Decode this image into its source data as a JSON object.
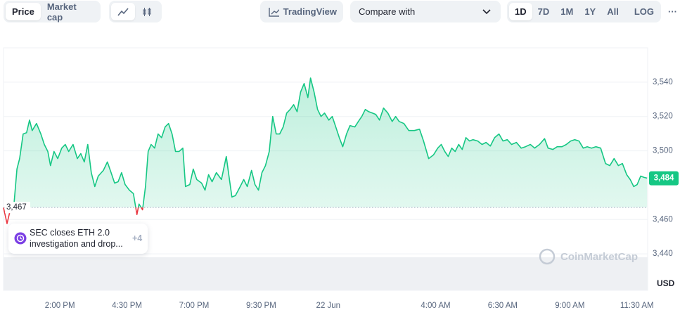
{
  "toolbar": {
    "type_tabs": [
      "Price",
      "Market cap"
    ],
    "tradingview": "TradingView",
    "compare": "Compare with",
    "ranges": [
      "1D",
      "7D",
      "1M",
      "1Y",
      "All"
    ],
    "log": "LOG",
    "more": "···"
  },
  "chart_data": {
    "type": "line",
    "x": [
      11.9,
      12.03,
      12.14,
      12.29,
      12.4,
      12.5,
      12.63,
      12.76,
      12.87,
      12.97,
      13.13,
      13.29,
      13.42,
      13.55,
      13.65,
      13.78,
      13.92,
      14.07,
      14.2,
      14.33,
      14.49,
      14.65,
      14.78,
      14.91,
      15.04,
      15.17,
      15.3,
      15.43,
      15.62,
      15.77,
      15.91,
      16.04,
      16.17,
      16.3,
      16.43,
      16.59,
      16.74,
      16.87,
      16.95,
      17.08,
      17.19,
      17.29,
      17.4,
      17.53,
      17.66,
      17.79,
      17.92,
      18.05,
      18.18,
      18.31,
      18.44,
      18.58,
      18.68,
      18.84,
      18.97,
      19.1,
      19.28,
      19.41,
      19.54,
      19.67,
      19.83,
      20.02,
      20.2,
      20.3,
      20.41,
      20.54,
      20.72,
      20.85,
      20.98,
      21.14,
      21.27,
      21.4,
      21.53,
      21.66,
      21.8,
      21.93,
      22.06,
      22.19,
      22.32,
      22.45,
      22.58,
      22.71,
      22.84,
      22.97,
      23.1,
      23.24,
      23.34,
      23.47,
      23.6,
      23.73,
      23.86,
      24.02,
      24.15,
      24.28,
      24.41,
      24.54,
      24.68,
      24.81,
      24.99,
      25.12,
      25.25,
      25.38,
      25.51,
      25.64,
      25.77,
      25.91,
      26.06,
      26.22,
      26.38,
      26.51,
      26.64,
      26.82,
      27.0,
      27.21,
      27.4,
      27.55,
      27.74,
      27.92,
      28.08,
      28.21,
      28.34,
      28.47,
      28.6,
      28.73,
      28.86,
      28.99,
      29.13,
      29.26,
      29.39,
      29.57,
      29.73,
      29.88,
      30.04,
      30.2,
      30.36,
      30.51,
      30.67,
      30.83,
      31.01,
      31.19,
      31.35,
      31.53,
      31.69,
      31.87,
      32.06,
      32.19,
      32.37,
      32.53,
      32.71,
      32.87,
      33.03,
      33.18,
      33.34,
      33.5,
      33.65,
      33.81,
      33.97,
      34.15,
      34.33,
      34.49,
      34.65,
      34.81,
      34.96,
      35.12,
      35.25,
      35.38,
      35.51,
      35.64,
      35.77,
      35.88
    ],
    "series": [
      {
        "color": "#16c784",
        "down_color": "#ea3943",
        "values": [
          3466.9,
          3457.6,
          3464.9,
          3469.0,
          3489.4,
          3495.5,
          3509.8,
          3510.6,
          3517.9,
          3511.8,
          3515.9,
          3509.8,
          3503.7,
          3499.6,
          3491.4,
          3499.6,
          3495.5,
          3501.6,
          3503.7,
          3499.6,
          3503.7,
          3495.5,
          3498.4,
          3493.5,
          3503.7,
          3487.3,
          3479.2,
          3485.3,
          3488.6,
          3493.5,
          3487.3,
          3481.2,
          3482.0,
          3487.3,
          3480.4,
          3477.1,
          3475.1,
          3462.9,
          3469.0,
          3465.7,
          3479.2,
          3499.6,
          3503.7,
          3501.6,
          3509.8,
          3507.7,
          3513.9,
          3515.9,
          3509.8,
          3499.6,
          3499.6,
          3501.6,
          3479.2,
          3480.4,
          3489.4,
          3483.3,
          3481.2,
          3477.1,
          3486.1,
          3482.0,
          3487.3,
          3483.3,
          3496.7,
          3485.3,
          3473.1,
          3473.9,
          3479.2,
          3483.3,
          3479.2,
          3488.6,
          3480.4,
          3477.1,
          3487.3,
          3491.4,
          3499.6,
          3520.0,
          3509.8,
          3509.8,
          3513.9,
          3522.0,
          3524.1,
          3526.9,
          3522.8,
          3534.3,
          3539.2,
          3531.0,
          3542.4,
          3534.3,
          3524.1,
          3520.0,
          3522.0,
          3517.9,
          3520.0,
          3513.9,
          3507.7,
          3502.4,
          3509.8,
          3514.7,
          3513.9,
          3517.1,
          3520.0,
          3524.1,
          3522.8,
          3522.0,
          3521.2,
          3517.9,
          3524.9,
          3522.0,
          3517.1,
          3520.0,
          3517.1,
          3515.9,
          3511.8,
          3511.8,
          3512.6,
          3505.7,
          3495.5,
          3497.6,
          3501.6,
          3503.7,
          3499.6,
          3496.7,
          3501.6,
          3499.6,
          3503.7,
          3500.8,
          3507.7,
          3505.7,
          3506.5,
          3505.7,
          3503.7,
          3504.9,
          3502.8,
          3507.7,
          3509.8,
          3505.7,
          3506.5,
          3503.7,
          3504.9,
          3501.6,
          3502.4,
          3503.7,
          3501.6,
          3503.7,
          3507.1,
          3501.6,
          3500.8,
          3502.4,
          3502.4,
          3503.7,
          3505.7,
          3506.5,
          3505.7,
          3501.6,
          3502.4,
          3501.6,
          3502.4,
          3501.6,
          3492.6,
          3491.4,
          3495.5,
          3491.4,
          3492.6,
          3486.1,
          3483.3,
          3479.2,
          3480.4,
          3485.3,
          3484.5,
          3484.1
        ]
      }
    ],
    "xlim": [
      11.9,
      35.9
    ],
    "xticks": [
      {
        "value": 14,
        "label": "2:00 PM"
      },
      {
        "value": 16.5,
        "label": "4:30 PM"
      },
      {
        "value": 19,
        "label": "7:00 PM"
      },
      {
        "value": 21.5,
        "label": "9:30 PM"
      },
      {
        "value": 24,
        "label": "22 Jun"
      },
      {
        "value": 28,
        "label": "4:00 AM"
      },
      {
        "value": 30.5,
        "label": "6:30 AM"
      },
      {
        "value": 33,
        "label": "9:00 AM"
      },
      {
        "value": 35.5,
        "label": "11:30 AM"
      }
    ],
    "ylim": [
      3420,
      3560
    ],
    "yticks": [
      {
        "value": 3440,
        "label": "3,440"
      },
      {
        "value": 3460,
        "label": "3,460"
      },
      {
        "value": 3500,
        "label": "3,500"
      },
      {
        "value": 3520,
        "label": "3,520"
      },
      {
        "value": 3540,
        "label": "3,540"
      }
    ],
    "y_unit": "USD",
    "grid": true,
    "open": {
      "value": 3467,
      "label": "3,467"
    },
    "current": {
      "value": 3484,
      "label": "3,484"
    },
    "annotation": {
      "lines": [
        "SEC closes ETH 2.0",
        "investigation and drop..."
      ],
      "more": "+4"
    },
    "watermark": "CoinMarketCap"
  }
}
